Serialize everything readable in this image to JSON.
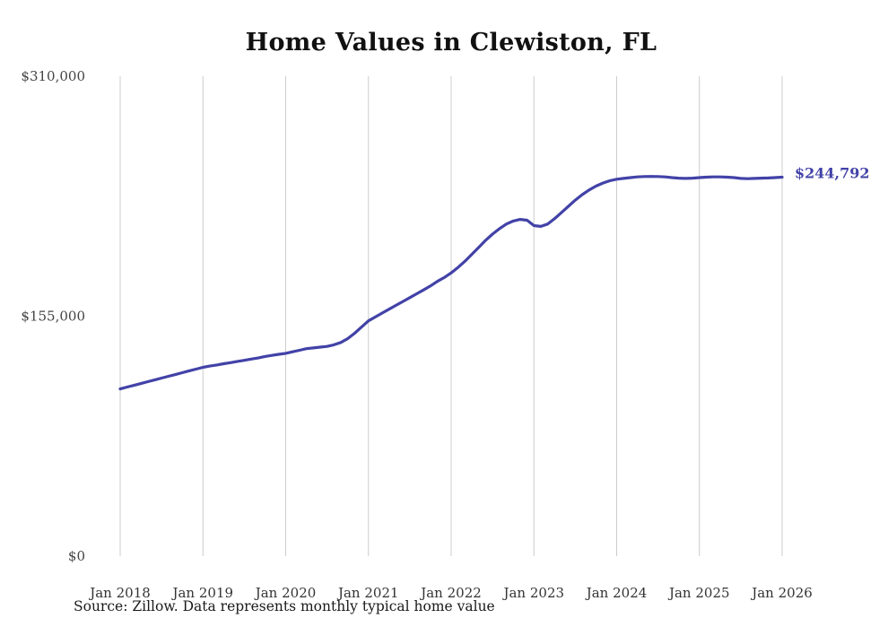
{
  "page": {
    "title": "Home Values in Clewiston, FL",
    "source_note": "Source: Zillow. Data represents monthly typical home value"
  },
  "chart_data": {
    "type": "line",
    "title": "Home Values in Clewiston, FL",
    "xlabel": "",
    "ylabel": "",
    "ylim": [
      0,
      310000
    ],
    "grid": "vertical-only",
    "legend": "none",
    "line_color": "#4242a8",
    "end_label": "$244,792",
    "end_value": 244792,
    "x_ticks": [
      "Jan 2018",
      "Jan 2019",
      "Jan 2020",
      "Jan 2021",
      "Jan 2022",
      "Jan 2023",
      "Jan 2024",
      "Jan 2025",
      "Jan 2026"
    ],
    "y_ticks": [
      {
        "label": "$0",
        "value": 0
      },
      {
        "label": "$155,000",
        "value": 155000
      },
      {
        "label": "$310,000",
        "value": 310000
      }
    ],
    "series": [
      {
        "name": "Monthly typical home value",
        "start": "Jan 2018",
        "frequency": "monthly",
        "values": [
          108000,
          109200,
          110300,
          111500,
          112700,
          113800,
          115000,
          116200,
          117300,
          118500,
          119700,
          120800,
          122000,
          122800,
          123500,
          124300,
          125000,
          125800,
          126500,
          127300,
          128000,
          129000,
          129700,
          130400,
          131000,
          132000,
          133000,
          134000,
          134500,
          135000,
          135500,
          136500,
          138000,
          140500,
          144000,
          148000,
          152000,
          154500,
          157000,
          159500,
          162000,
          164500,
          167000,
          169500,
          172000,
          174500,
          177500,
          180000,
          183000,
          186500,
          190500,
          195000,
          199500,
          204000,
          208000,
          211500,
          214500,
          216500,
          217500,
          217000,
          213500,
          213000,
          214500,
          218000,
          222000,
          226000,
          230000,
          233500,
          236500,
          239000,
          241000,
          242500,
          243500,
          244000,
          244500,
          245000,
          245200,
          245300,
          245200,
          245000,
          244500,
          244200,
          244000,
          244200,
          244500,
          244800,
          245000,
          245000,
          244800,
          244500,
          244000,
          243800,
          244000,
          244200,
          244300,
          244500,
          244792
        ]
      }
    ]
  }
}
